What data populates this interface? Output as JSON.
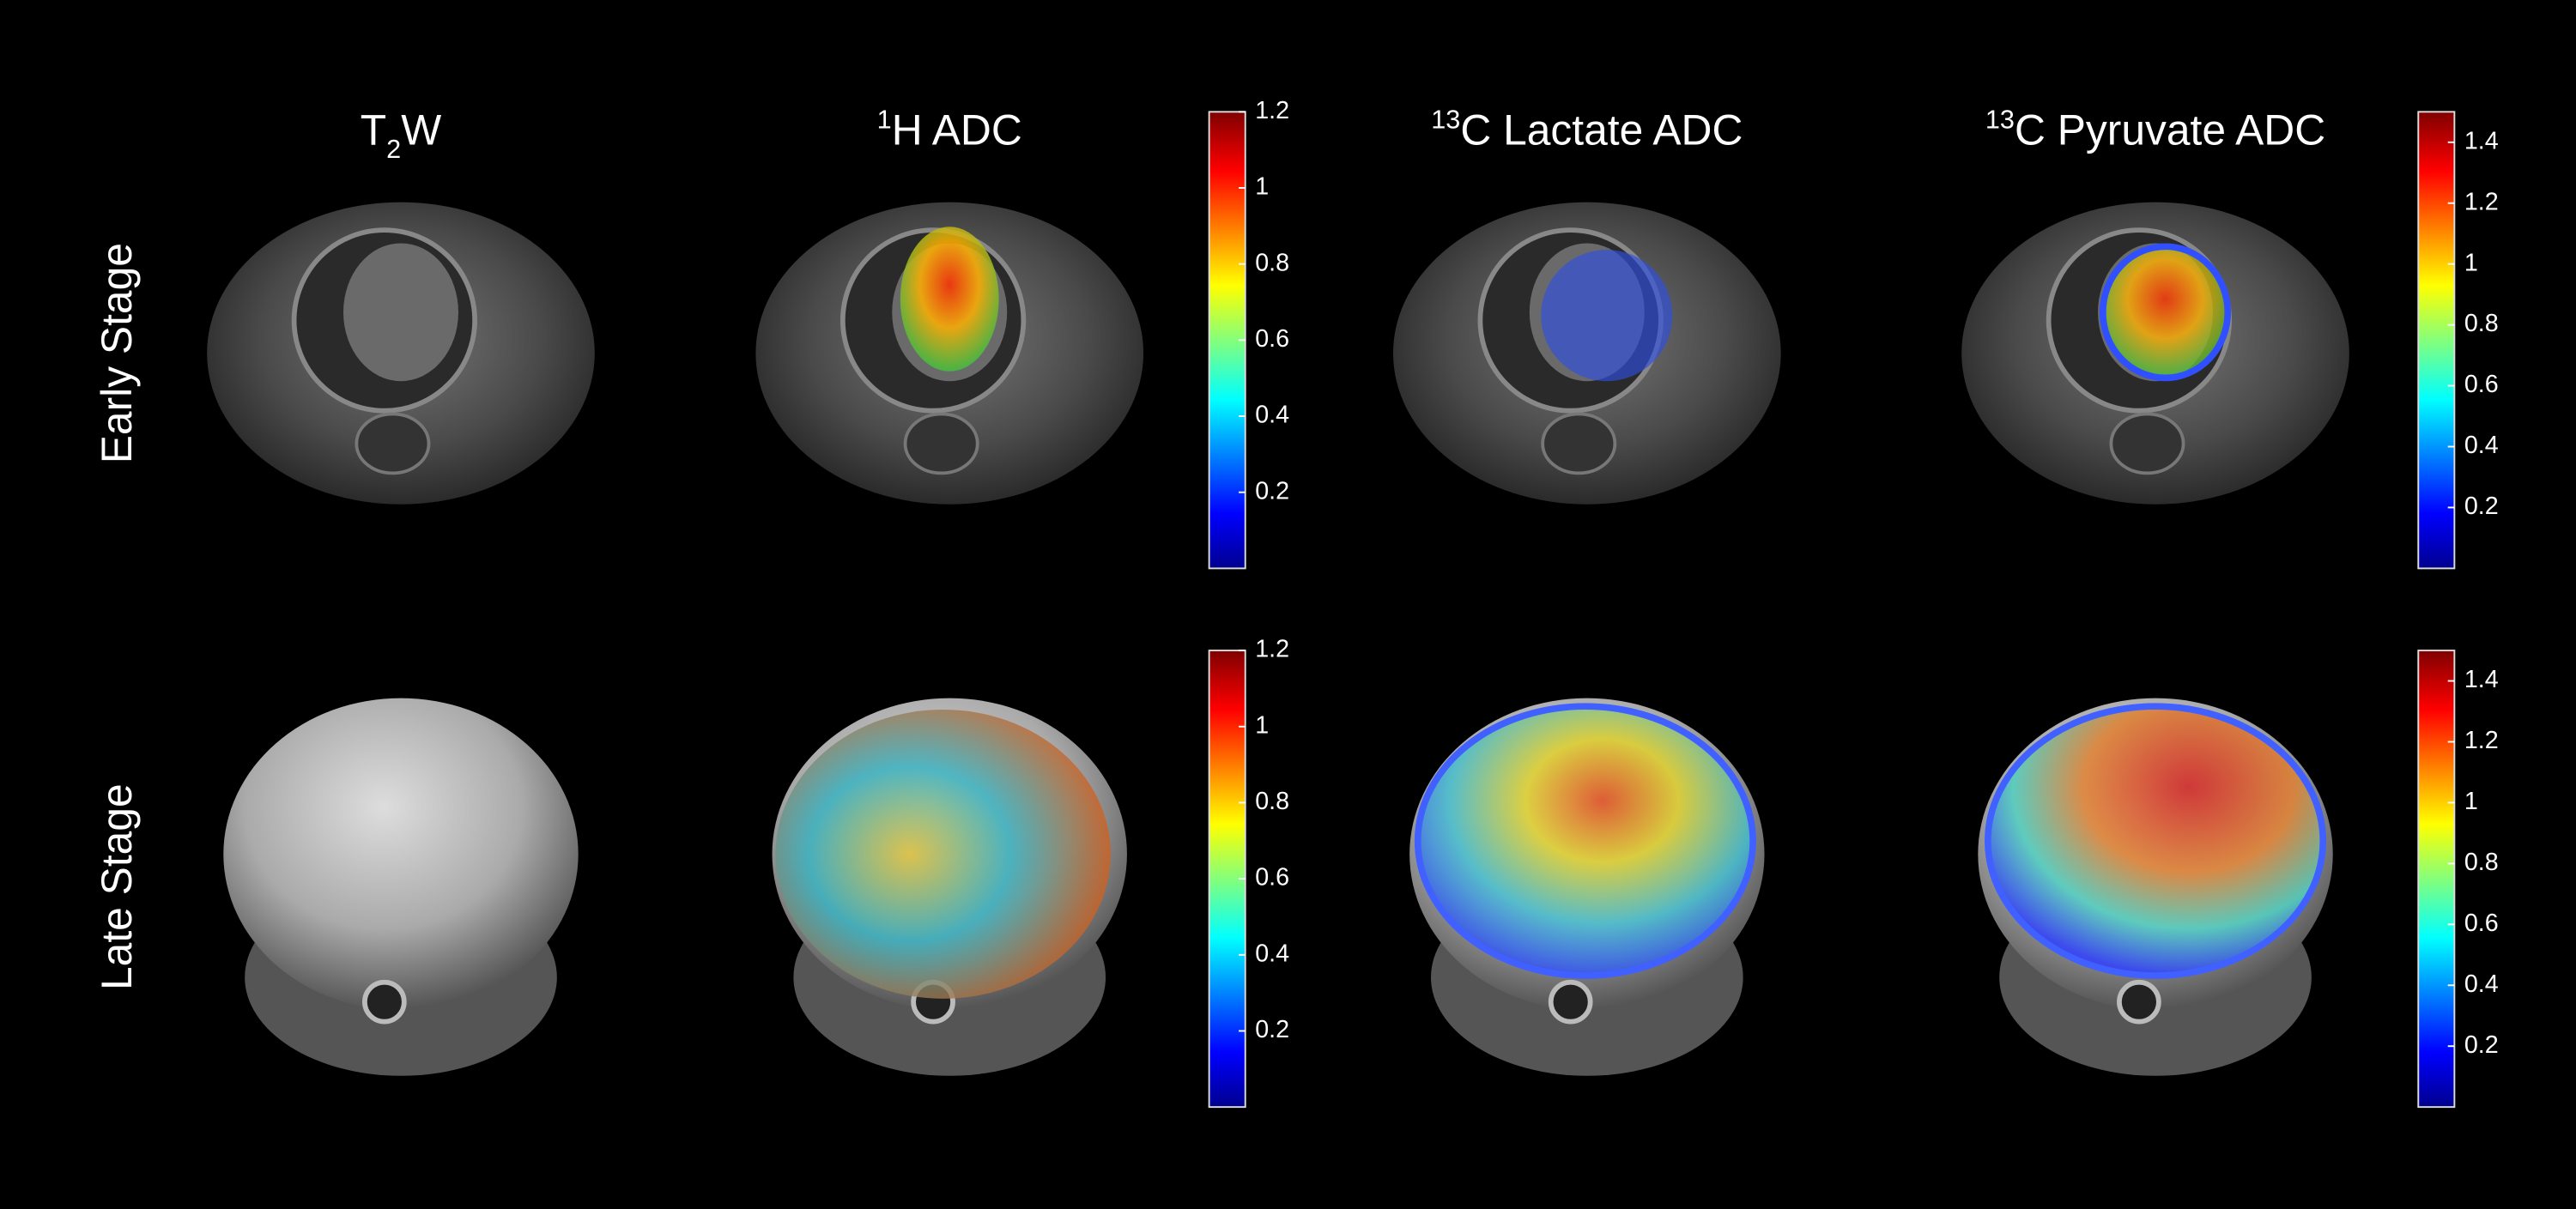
{
  "columns": [
    {
      "title": [
        {
          "text": "T"
        },
        {
          "text": "2",
          "shift": "sub"
        },
        {
          "text": "W"
        }
      ]
    },
    {
      "title": [
        {
          "text": "1",
          "shift": "sup"
        },
        {
          "text": "H ADC"
        }
      ],
      "colorbar": {
        "lim": [
          0,
          1.2
        ],
        "ticks": [
          0.2,
          0.4,
          0.6,
          0.8,
          1,
          1.2
        ]
      }
    },
    {
      "title": [
        {
          "text": "13",
          "shift": "sup"
        },
        {
          "text": "C Lactate ADC"
        }
      ]
    },
    {
      "title": [
        {
          "text": "13",
          "shift": "sup"
        },
        {
          "text": "C Pyruvate ADC"
        }
      ],
      "colorbar": {
        "lim": [
          0,
          1.5
        ],
        "ticks": [
          0.2,
          0.4,
          0.6,
          0.8,
          1,
          1.2,
          1.4
        ]
      }
    }
  ],
  "rows": [
    "Early Stage",
    "Late Stage"
  ]
}
